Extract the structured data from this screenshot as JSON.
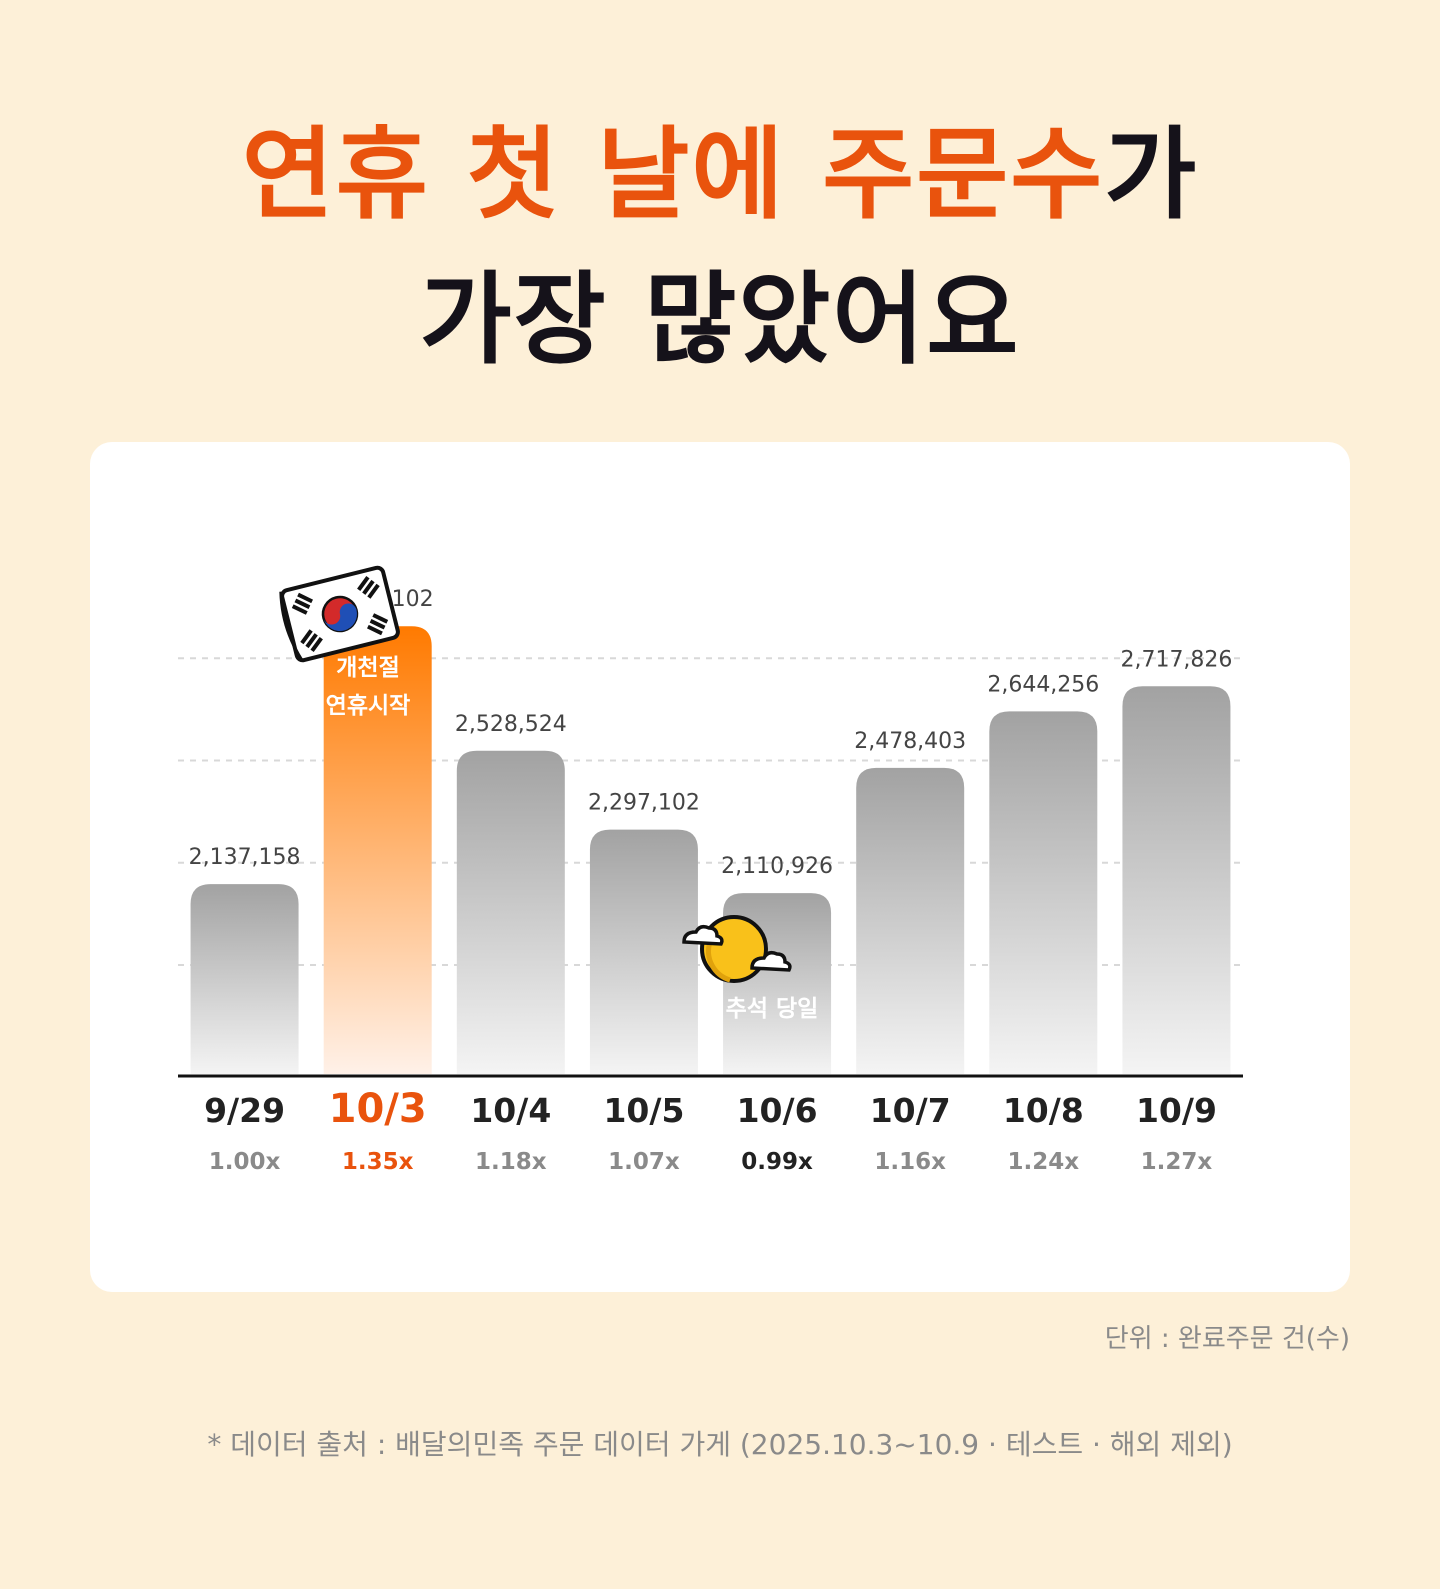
{
  "title": {
    "line1_highlight": "연휴 첫 날에 주문수",
    "line1_rest": "가",
    "line2": "가장 많았어요"
  },
  "colors": {
    "accent": "#e9530d",
    "highlight_bar_top": "#ff7a00",
    "highlight_bar_bottom": "#fff1e8",
    "bar_top": "#a2a2a2",
    "bar_bottom": "#f4f4f4",
    "background": "#fdf0d8"
  },
  "annotations": {
    "holiday_start": [
      "개천절",
      "연휴시작"
    ],
    "chuseok_day": "추석 당일"
  },
  "unit_label": "단위 : 완료주문 건(수)",
  "source_note": "* 데이터 출처 : 배달의민족 주문 데이터 가게 (2025.10.3~10.9 · 테스트 · 해외 제외)",
  "chart_data": {
    "type": "bar",
    "categories": [
      "9/29",
      "10/3",
      "10/4",
      "10/5",
      "10/6",
      "10/7",
      "10/8",
      "10/9"
    ],
    "values": [
      2137158,
      2894102,
      2528524,
      2297102,
      2110926,
      2478403,
      2644256,
      2717826
    ],
    "value_labels": [
      "2,137,158",
      "2,894,102",
      "2,528,524",
      "2,297,102",
      "2,110,926",
      "2,478,403",
      "2,644,256",
      "2,717,826"
    ],
    "ratios": [
      "1.00x",
      "1.35x",
      "1.18x",
      "1.07x",
      "0.99x",
      "1.16x",
      "1.24x",
      "1.27x"
    ],
    "highlight_index": 1,
    "title": "",
    "xlabel": "",
    "ylabel": "",
    "ylim": [
      1580000,
      3200000
    ],
    "gridlines": [
      1900000,
      2200000,
      2500000,
      2800000
    ],
    "grid": true,
    "legend": "none"
  }
}
